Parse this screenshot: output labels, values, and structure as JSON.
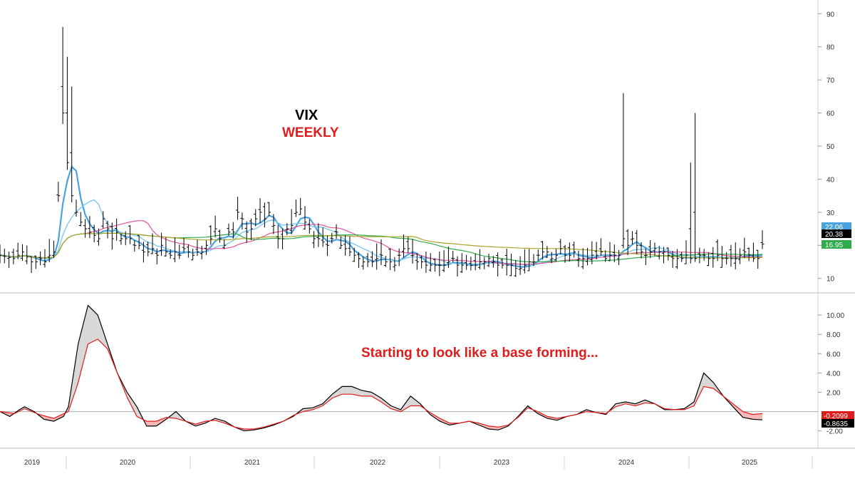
{
  "chart_data": [
    {
      "type": "ohlc",
      "title": "VIX",
      "subtitle": "WEEKLY",
      "ylim": [
        8,
        92
      ],
      "yticks": [
        10,
        20,
        30,
        40,
        50,
        60,
        70,
        80,
        90
      ],
      "x_years": [
        "2019",
        "2020",
        "2021",
        "2022",
        "2023",
        "2024",
        "2025"
      ],
      "price_labels": [
        {
          "value": "22.06",
          "color": "#4aa3df"
        },
        {
          "value": "20.38",
          "color": "#000000"
        },
        {
          "value": "16.95",
          "color": "#2eab4a"
        }
      ],
      "price_path": [
        [
          0,
          17
        ],
        [
          3,
          16
        ],
        [
          5,
          18
        ],
        [
          7,
          15
        ],
        [
          8,
          15
        ],
        [
          9,
          16
        ],
        [
          10,
          15
        ],
        [
          11,
          17
        ],
        [
          12,
          18
        ],
        [
          13,
          35
        ],
        [
          14,
          60
        ],
        [
          15,
          45
        ],
        [
          16,
          35
        ],
        [
          17,
          30
        ],
        [
          18,
          27
        ],
        [
          19,
          25
        ],
        [
          20,
          24
        ],
        [
          21,
          23
        ],
        [
          22,
          22
        ],
        [
          23,
          28
        ],
        [
          24,
          25
        ],
        [
          25,
          22
        ],
        [
          26,
          24
        ],
        [
          27,
          22
        ],
        [
          28,
          22
        ],
        [
          29,
          22
        ],
        [
          30,
          20
        ],
        [
          31,
          20
        ],
        [
          32,
          18
        ],
        [
          33,
          18
        ],
        [
          34,
          19
        ],
        [
          35,
          17
        ],
        [
          36,
          20
        ],
        [
          37,
          18
        ],
        [
          38,
          17
        ],
        [
          39,
          18
        ],
        [
          40,
          17
        ],
        [
          41,
          19
        ],
        [
          42,
          18
        ],
        [
          43,
          17
        ],
        [
          44,
          18
        ],
        [
          45,
          18
        ],
        [
          46,
          20
        ],
        [
          47,
          22
        ],
        [
          48,
          25
        ],
        [
          49,
          22
        ],
        [
          50,
          20
        ],
        [
          51,
          24
        ],
        [
          52,
          24
        ],
        [
          53,
          30
        ],
        [
          54,
          28
        ],
        [
          55,
          24
        ],
        [
          56,
          25
        ],
        [
          57,
          28
        ],
        [
          58,
          30
        ],
        [
          59,
          28
        ],
        [
          60,
          30
        ],
        [
          61,
          26
        ],
        [
          62,
          22
        ],
        [
          63,
          22
        ],
        [
          64,
          25
        ],
        [
          65,
          26
        ],
        [
          66,
          30
        ],
        [
          67,
          31
        ],
        [
          68,
          27
        ],
        [
          69,
          25
        ],
        [
          70,
          22
        ],
        [
          71,
          22
        ],
        [
          72,
          21
        ],
        [
          73,
          20
        ],
        [
          74,
          22
        ],
        [
          75,
          24
        ],
        [
          76,
          20
        ],
        [
          77,
          19
        ],
        [
          78,
          18
        ],
        [
          79,
          17
        ],
        [
          80,
          16
        ],
        [
          81,
          15
        ],
        [
          82,
          15
        ],
        [
          83,
          15
        ],
        [
          84,
          16
        ],
        [
          85,
          17
        ],
        [
          86,
          15
        ],
        [
          87,
          15
        ],
        [
          88,
          14
        ],
        [
          89,
          17
        ],
        [
          90,
          19
        ],
        [
          91,
          19
        ],
        [
          92,
          17
        ],
        [
          93,
          15
        ],
        [
          94,
          15
        ],
        [
          95,
          14
        ],
        [
          96,
          14
        ],
        [
          97,
          14
        ],
        [
          98,
          14
        ],
        [
          99,
          14
        ],
        [
          100,
          15
        ],
        [
          101,
          16
        ],
        [
          102,
          14
        ],
        [
          103,
          14
        ],
        [
          104,
          14
        ],
        [
          105,
          14
        ],
        [
          106,
          14
        ],
        [
          107,
          15
        ],
        [
          108,
          15
        ],
        [
          109,
          16
        ],
        [
          110,
          15
        ],
        [
          111,
          14
        ],
        [
          112,
          14
        ],
        [
          113,
          14
        ],
        [
          114,
          14
        ],
        [
          115,
          13
        ],
        [
          116,
          13
        ],
        [
          117,
          14
        ],
        [
          118,
          15
        ],
        [
          119,
          15
        ],
        [
          120,
          17
        ],
        [
          121,
          18
        ],
        [
          122,
          18
        ],
        [
          123,
          16
        ],
        [
          124,
          17
        ],
        [
          125,
          19
        ],
        [
          126,
          17
        ],
        [
          127,
          17
        ],
        [
          128,
          18
        ],
        [
          129,
          16
        ],
        [
          130,
          16
        ],
        [
          131,
          16
        ],
        [
          132,
          17
        ],
        [
          133,
          17
        ],
        [
          134,
          18
        ],
        [
          135,
          16
        ],
        [
          136,
          17
        ],
        [
          137,
          17
        ],
        [
          138,
          17
        ],
        [
          139,
          22
        ],
        [
          140,
          20
        ],
        [
          141,
          22
        ],
        [
          142,
          20
        ],
        [
          143,
          18
        ],
        [
          144,
          17
        ],
        [
          145,
          18
        ],
        [
          146,
          19
        ],
        [
          147,
          18
        ],
        [
          148,
          18
        ],
        [
          149,
          17
        ],
        [
          150,
          16
        ],
        [
          151,
          16
        ],
        [
          152,
          16
        ],
        [
          153,
          17
        ],
        [
          154,
          16
        ],
        [
          155,
          16
        ],
        [
          156,
          17
        ],
        [
          157,
          17
        ],
        [
          158,
          16
        ],
        [
          159,
          16
        ],
        [
          160,
          17
        ],
        [
          161,
          16
        ],
        [
          162,
          16
        ],
        [
          163,
          16
        ],
        [
          164,
          16
        ],
        [
          165,
          17
        ],
        [
          166,
          18
        ],
        [
          167,
          17
        ],
        [
          168,
          16
        ],
        [
          169,
          16
        ],
        [
          170,
          20.38
        ]
      ],
      "spikes": [
        [
          14,
          86,
          68
        ],
        [
          15,
          77,
          60
        ],
        [
          16,
          68,
          48
        ],
        [
          139,
          66,
          20
        ],
        [
          155,
          60,
          30
        ],
        [
          154,
          45,
          25
        ]
      ],
      "oscillator": {
        "ylim": [
          -3.5,
          12
        ],
        "yticks": [
          "10.00",
          "8.00",
          "6.00",
          "4.00",
          "2.00",
          "-2.00"
        ],
        "value_labels": [
          {
            "value": "-0.2099",
            "color": "#e01b1b"
          },
          {
            "value": "-0.8635",
            "color": "#000000"
          }
        ],
        "fast": [
          [
            0,
            0
          ],
          [
            2,
            -0.5
          ],
          [
            4,
            0.2
          ],
          [
            5,
            0.5
          ],
          [
            7,
            0
          ],
          [
            9,
            -0.8
          ],
          [
            11,
            -1
          ],
          [
            13,
            -0.5
          ],
          [
            14,
            0.5
          ],
          [
            16,
            7
          ],
          [
            18,
            11
          ],
          [
            20,
            10
          ],
          [
            22,
            7
          ],
          [
            24,
            4
          ],
          [
            26,
            2
          ],
          [
            28,
            0.5
          ],
          [
            30,
            -1.5
          ],
          [
            32,
            -1.5
          ],
          [
            34,
            -0.8
          ],
          [
            36,
            0
          ],
          [
            38,
            -1
          ],
          [
            40,
            -1.5
          ],
          [
            42,
            -1.2
          ],
          [
            44,
            -0.7
          ],
          [
            46,
            -1
          ],
          [
            48,
            -1.6
          ],
          [
            50,
            -2
          ],
          [
            52,
            -1.9
          ],
          [
            54,
            -1.7
          ],
          [
            56,
            -1.4
          ],
          [
            58,
            -1
          ],
          [
            60,
            -0.5
          ],
          [
            62,
            0.3
          ],
          [
            64,
            0.4
          ],
          [
            66,
            0.8
          ],
          [
            68,
            1.8
          ],
          [
            70,
            2.6
          ],
          [
            72,
            2.6
          ],
          [
            74,
            2.2
          ],
          [
            76,
            2
          ],
          [
            78,
            1.4
          ],
          [
            80,
            0.6
          ],
          [
            82,
            0.2
          ],
          [
            84,
            1.6
          ],
          [
            86,
            0.8
          ],
          [
            88,
            -0.3
          ],
          [
            90,
            -1
          ],
          [
            92,
            -1.4
          ],
          [
            94,
            -1.2
          ],
          [
            96,
            -1
          ],
          [
            98,
            -1.4
          ],
          [
            100,
            -1.8
          ],
          [
            102,
            -1.9
          ],
          [
            104,
            -1.5
          ],
          [
            106,
            -0.5
          ],
          [
            108,
            0.6
          ],
          [
            110,
            -0.2
          ],
          [
            112,
            -0.7
          ],
          [
            114,
            -0.9
          ],
          [
            116,
            -0.5
          ],
          [
            118,
            -0.3
          ],
          [
            120,
            0.2
          ],
          [
            122,
            -0.1
          ],
          [
            124,
            -0.3
          ],
          [
            126,
            0.8
          ],
          [
            128,
            1
          ],
          [
            130,
            0.8
          ],
          [
            132,
            1.2
          ],
          [
            134,
            0.8
          ],
          [
            136,
            0.2
          ],
          [
            138,
            0.2
          ],
          [
            140,
            0.3
          ],
          [
            142,
            1
          ],
          [
            144,
            4
          ],
          [
            146,
            3
          ],
          [
            148,
            1.6
          ],
          [
            150,
            0.5
          ],
          [
            152,
            -0.6
          ],
          [
            154,
            -0.8
          ],
          [
            156,
            -0.86
          ]
        ],
        "slow": [
          [
            0,
            0
          ],
          [
            3,
            -0.2
          ],
          [
            5,
            0.3
          ],
          [
            8,
            -0.3
          ],
          [
            11,
            -0.7
          ],
          [
            14,
            0
          ],
          [
            16,
            3
          ],
          [
            18,
            7
          ],
          [
            20,
            7.5
          ],
          [
            22,
            6.5
          ],
          [
            24,
            4
          ],
          [
            26,
            1.5
          ],
          [
            28,
            -0.5
          ],
          [
            30,
            -1
          ],
          [
            32,
            -1
          ],
          [
            34,
            -0.6
          ],
          [
            36,
            -0.7
          ],
          [
            38,
            -1
          ],
          [
            40,
            -1.3
          ],
          [
            42,
            -1
          ],
          [
            44,
            -0.9
          ],
          [
            46,
            -1.2
          ],
          [
            48,
            -1.6
          ],
          [
            50,
            -1.8
          ],
          [
            52,
            -1.8
          ],
          [
            54,
            -1.6
          ],
          [
            56,
            -1.3
          ],
          [
            58,
            -1
          ],
          [
            60,
            -0.4
          ],
          [
            62,
            0
          ],
          [
            64,
            0.2
          ],
          [
            66,
            0.6
          ],
          [
            68,
            1.4
          ],
          [
            70,
            1.8
          ],
          [
            72,
            1.8
          ],
          [
            74,
            1.6
          ],
          [
            76,
            1.6
          ],
          [
            78,
            1
          ],
          [
            80,
            0.3
          ],
          [
            82,
            0
          ],
          [
            84,
            0.6
          ],
          [
            86,
            0.6
          ],
          [
            88,
            -0.1
          ],
          [
            90,
            -0.7
          ],
          [
            92,
            -1.2
          ],
          [
            94,
            -1.2
          ],
          [
            96,
            -1
          ],
          [
            98,
            -1.2
          ],
          [
            100,
            -1.5
          ],
          [
            102,
            -1.6
          ],
          [
            104,
            -1.4
          ],
          [
            106,
            -0.6
          ],
          [
            108,
            0.4
          ],
          [
            110,
            0
          ],
          [
            112,
            -0.5
          ],
          [
            114,
            -0.7
          ],
          [
            116,
            -0.5
          ],
          [
            118,
            -0.3
          ],
          [
            120,
            0
          ],
          [
            122,
            -0.1
          ],
          [
            124,
            -0.2
          ],
          [
            126,
            0.5
          ],
          [
            128,
            0.8
          ],
          [
            130,
            0.6
          ],
          [
            132,
            0.9
          ],
          [
            134,
            0.8
          ],
          [
            136,
            0.3
          ],
          [
            138,
            0.2
          ],
          [
            140,
            0.2
          ],
          [
            142,
            0.6
          ],
          [
            144,
            2.6
          ],
          [
            146,
            2.4
          ],
          [
            148,
            1.6
          ],
          [
            150,
            0.8
          ],
          [
            152,
            0
          ],
          [
            154,
            -0.3
          ],
          [
            156,
            -0.21
          ]
        ]
      },
      "annotation": "Starting to look like a base forming..."
    }
  ],
  "colors": {
    "bars": "#000000",
    "ma_fast": "#4aa3df",
    "ma_slow": "#7fc8f0",
    "ma_pink": "#e0559b",
    "ma_green": "#2eab4a",
    "ma_olive": "#a9a52a",
    "osc_fast": "#000000",
    "osc_slow": "#e01b1b",
    "fill_down": "#f8b7b7",
    "fill_up": "#d8d8d8",
    "title_black": "#000000",
    "title_red": "#e01b1b"
  }
}
